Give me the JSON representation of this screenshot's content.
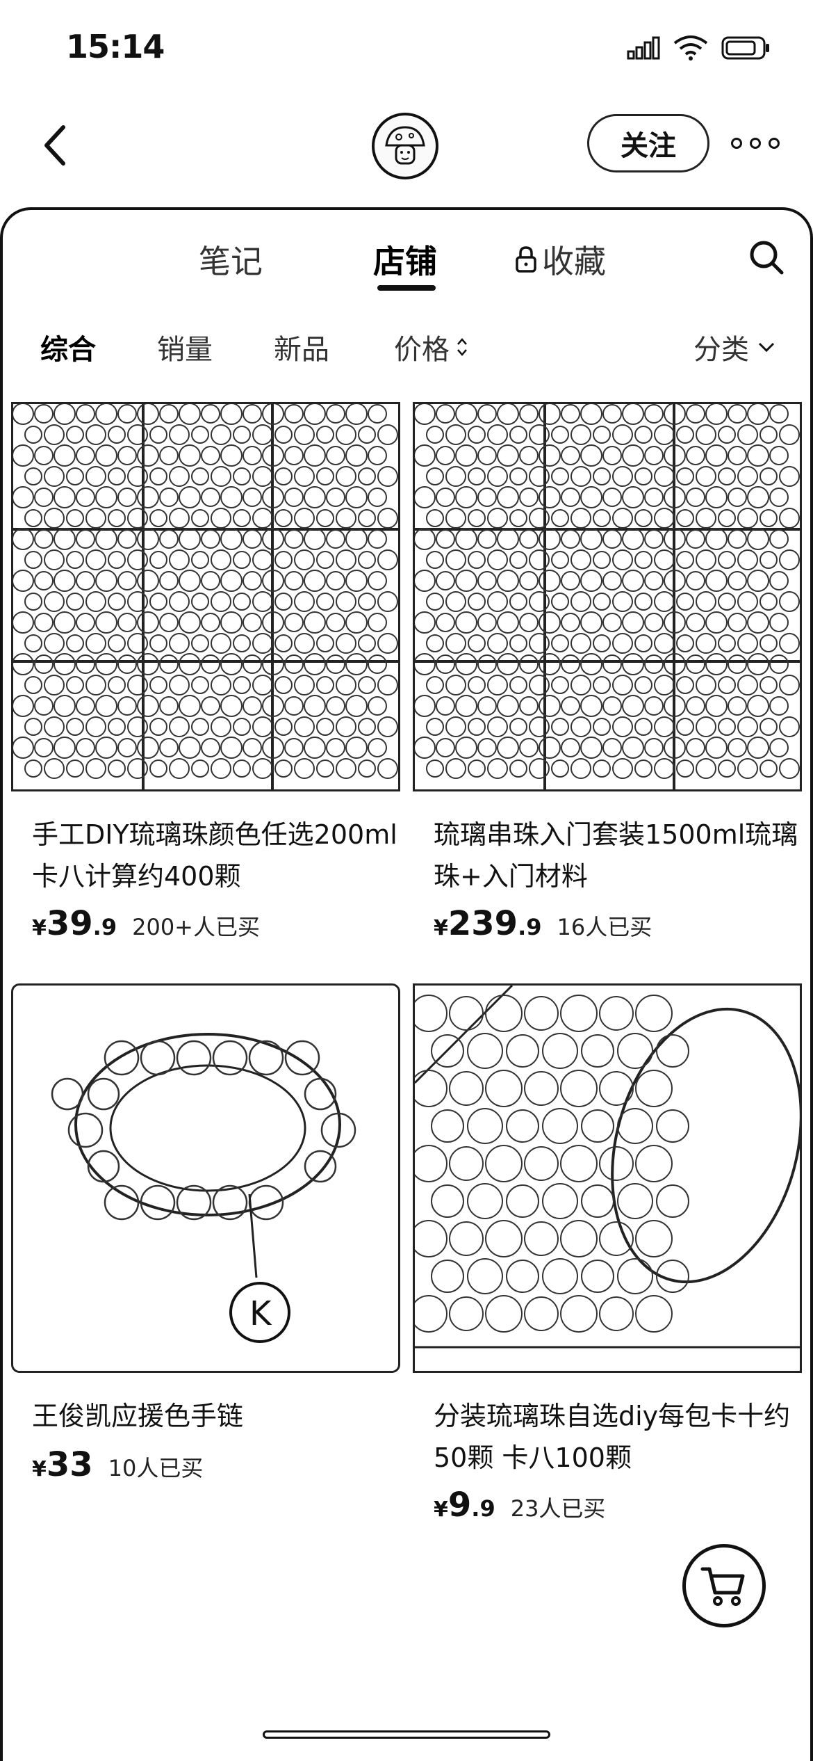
{
  "status_bar": {
    "time": "15:14"
  },
  "header": {
    "follow_label": "关注"
  },
  "tabs": [
    {
      "label": "笔记"
    },
    {
      "label": "店铺"
    },
    {
      "label": "收藏"
    }
  ],
  "filters": [
    {
      "label": "综合"
    },
    {
      "label": "销量"
    },
    {
      "label": "新品"
    },
    {
      "label": "价格"
    },
    {
      "label": "分类"
    }
  ],
  "products": [
    {
      "title": "手工DIY琉璃珠颜色任选200ml卡八计算约400颗",
      "currency": "¥",
      "price_int": "39",
      "price_dec": ".9",
      "sold": "200+人已买"
    },
    {
      "title": "琉璃串珠入门套装1500ml琉璃珠+入门材料",
      "currency": "¥",
      "price_int": "239",
      "price_dec": ".9",
      "sold": "16人已买"
    },
    {
      "title": "王俊凯应援色手链",
      "currency": "¥",
      "price_int": "33",
      "price_dec": "",
      "sold": "10人已买"
    },
    {
      "title": "分装琉璃珠自选diy每包卡十约50颗 卡八100颗",
      "currency": "¥",
      "price_int": "9",
      "price_dec": ".9",
      "sold": "23人已买"
    }
  ],
  "icons": {
    "back": "chevron-left-icon",
    "more": "more-icon",
    "lock": "lock-icon",
    "search": "search-icon",
    "cart": "cart-icon"
  }
}
